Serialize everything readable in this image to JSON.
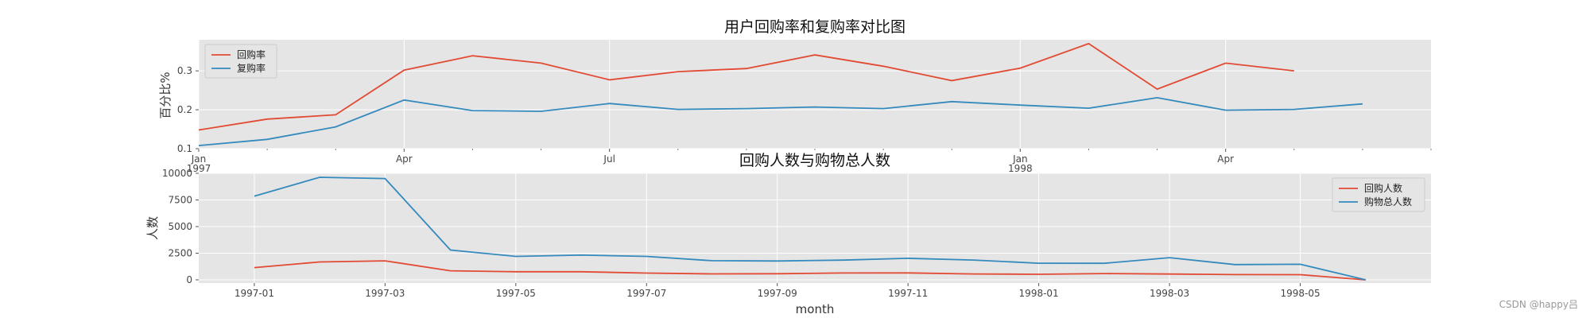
{
  "watermark": "CSDN @happy吕",
  "chart_data": [
    {
      "type": "line",
      "title": "用户回购率和复购率对比图",
      "xlabel": "",
      "ylabel": "百分比%",
      "x_ticks": [
        {
          "date": "1997-01",
          "label": "Jan",
          "sublabel": "1997"
        },
        {
          "date": "1997-04",
          "label": "Apr",
          "sublabel": ""
        },
        {
          "date": "1997-07",
          "label": "Jul",
          "sublabel": ""
        },
        {
          "date": "1998-01",
          "label": "Jan",
          "sublabel": "1998"
        },
        {
          "date": "1998-04",
          "label": "Apr",
          "sublabel": ""
        }
      ],
      "ylim": [
        0.1,
        0.38
      ],
      "yticks": [
        "0.1",
        "0.2",
        "0.3"
      ],
      "grid": true,
      "legend": "top-left",
      "series": [
        {
          "name": "回购率",
          "color": "#e24a33",
          "x": [
            "1997-01",
            "1997-02",
            "1997-03",
            "1997-04",
            "1997-05",
            "1997-06",
            "1997-07",
            "1997-08",
            "1997-09",
            "1997-10",
            "1997-11",
            "1997-12",
            "1998-01",
            "1998-02",
            "1998-03",
            "1998-04",
            "1998-05"
          ],
          "values": [
            0.148,
            0.176,
            0.187,
            0.302,
            0.339,
            0.32,
            0.277,
            0.298,
            0.306,
            0.341,
            0.312,
            0.275,
            0.307,
            0.37,
            0.253,
            0.32,
            0.3
          ]
        },
        {
          "name": "复购率",
          "color": "#348abd",
          "x": [
            "1997-01",
            "1997-02",
            "1997-03",
            "1997-04",
            "1997-05",
            "1997-06",
            "1997-07",
            "1997-08",
            "1997-09",
            "1997-10",
            "1997-11",
            "1997-12",
            "1998-01",
            "1998-02",
            "1998-03",
            "1998-04",
            "1998-05",
            "1998-06"
          ],
          "values": [
            0.108,
            0.124,
            0.156,
            0.225,
            0.198,
            0.196,
            0.216,
            0.201,
            0.203,
            0.207,
            0.203,
            0.221,
            0.212,
            0.204,
            0.231,
            0.199,
            0.201,
            0.215
          ]
        }
      ]
    },
    {
      "type": "line",
      "title": "回购人数与购物总人数",
      "xlabel": "month",
      "ylabel": "人数",
      "x_ticks": [
        {
          "date": "1997-01",
          "label": "1997-01"
        },
        {
          "date": "1997-03",
          "label": "1997-03"
        },
        {
          "date": "1997-05",
          "label": "1997-05"
        },
        {
          "date": "1997-07",
          "label": "1997-07"
        },
        {
          "date": "1997-09",
          "label": "1997-09"
        },
        {
          "date": "1997-11",
          "label": "1997-11"
        },
        {
          "date": "1998-01",
          "label": "1998-01"
        },
        {
          "date": "1998-03",
          "label": "1998-03"
        },
        {
          "date": "1998-05",
          "label": "1998-05"
        }
      ],
      "ylim": [
        -300,
        10000
      ],
      "yticks": [
        "0",
        "2500",
        "5000",
        "7500",
        "10000"
      ],
      "grid": true,
      "legend": "top-right",
      "series": [
        {
          "name": "回购人数",
          "color": "#e24a33",
          "x": [
            "1997-01",
            "1997-02",
            "1997-03",
            "1997-04",
            "1997-05",
            "1997-06",
            "1997-07",
            "1997-08",
            "1997-09",
            "1997-10",
            "1997-11",
            "1997-12",
            "1998-01",
            "1998-02",
            "1998-03",
            "1998-04",
            "1998-05",
            "1998-06"
          ],
          "values": [
            1150,
            1680,
            1780,
            850,
            760,
            760,
            630,
            560,
            570,
            640,
            650,
            550,
            520,
            590,
            540,
            490,
            480,
            0
          ]
        },
        {
          "name": "购物总人数",
          "color": "#348abd",
          "x": [
            "1997-01",
            "1997-02",
            "1997-03",
            "1997-04",
            "1997-05",
            "1997-06",
            "1997-07",
            "1997-08",
            "1997-09",
            "1997-10",
            "1997-11",
            "1997-12",
            "1998-01",
            "1998-02",
            "1998-03",
            "1998-04",
            "1998-05",
            "1998-06"
          ],
          "values": [
            7850,
            9630,
            9510,
            2800,
            2200,
            2320,
            2200,
            1800,
            1770,
            1850,
            2020,
            1860,
            1560,
            1550,
            2080,
            1430,
            1460,
            0
          ]
        }
      ]
    }
  ]
}
